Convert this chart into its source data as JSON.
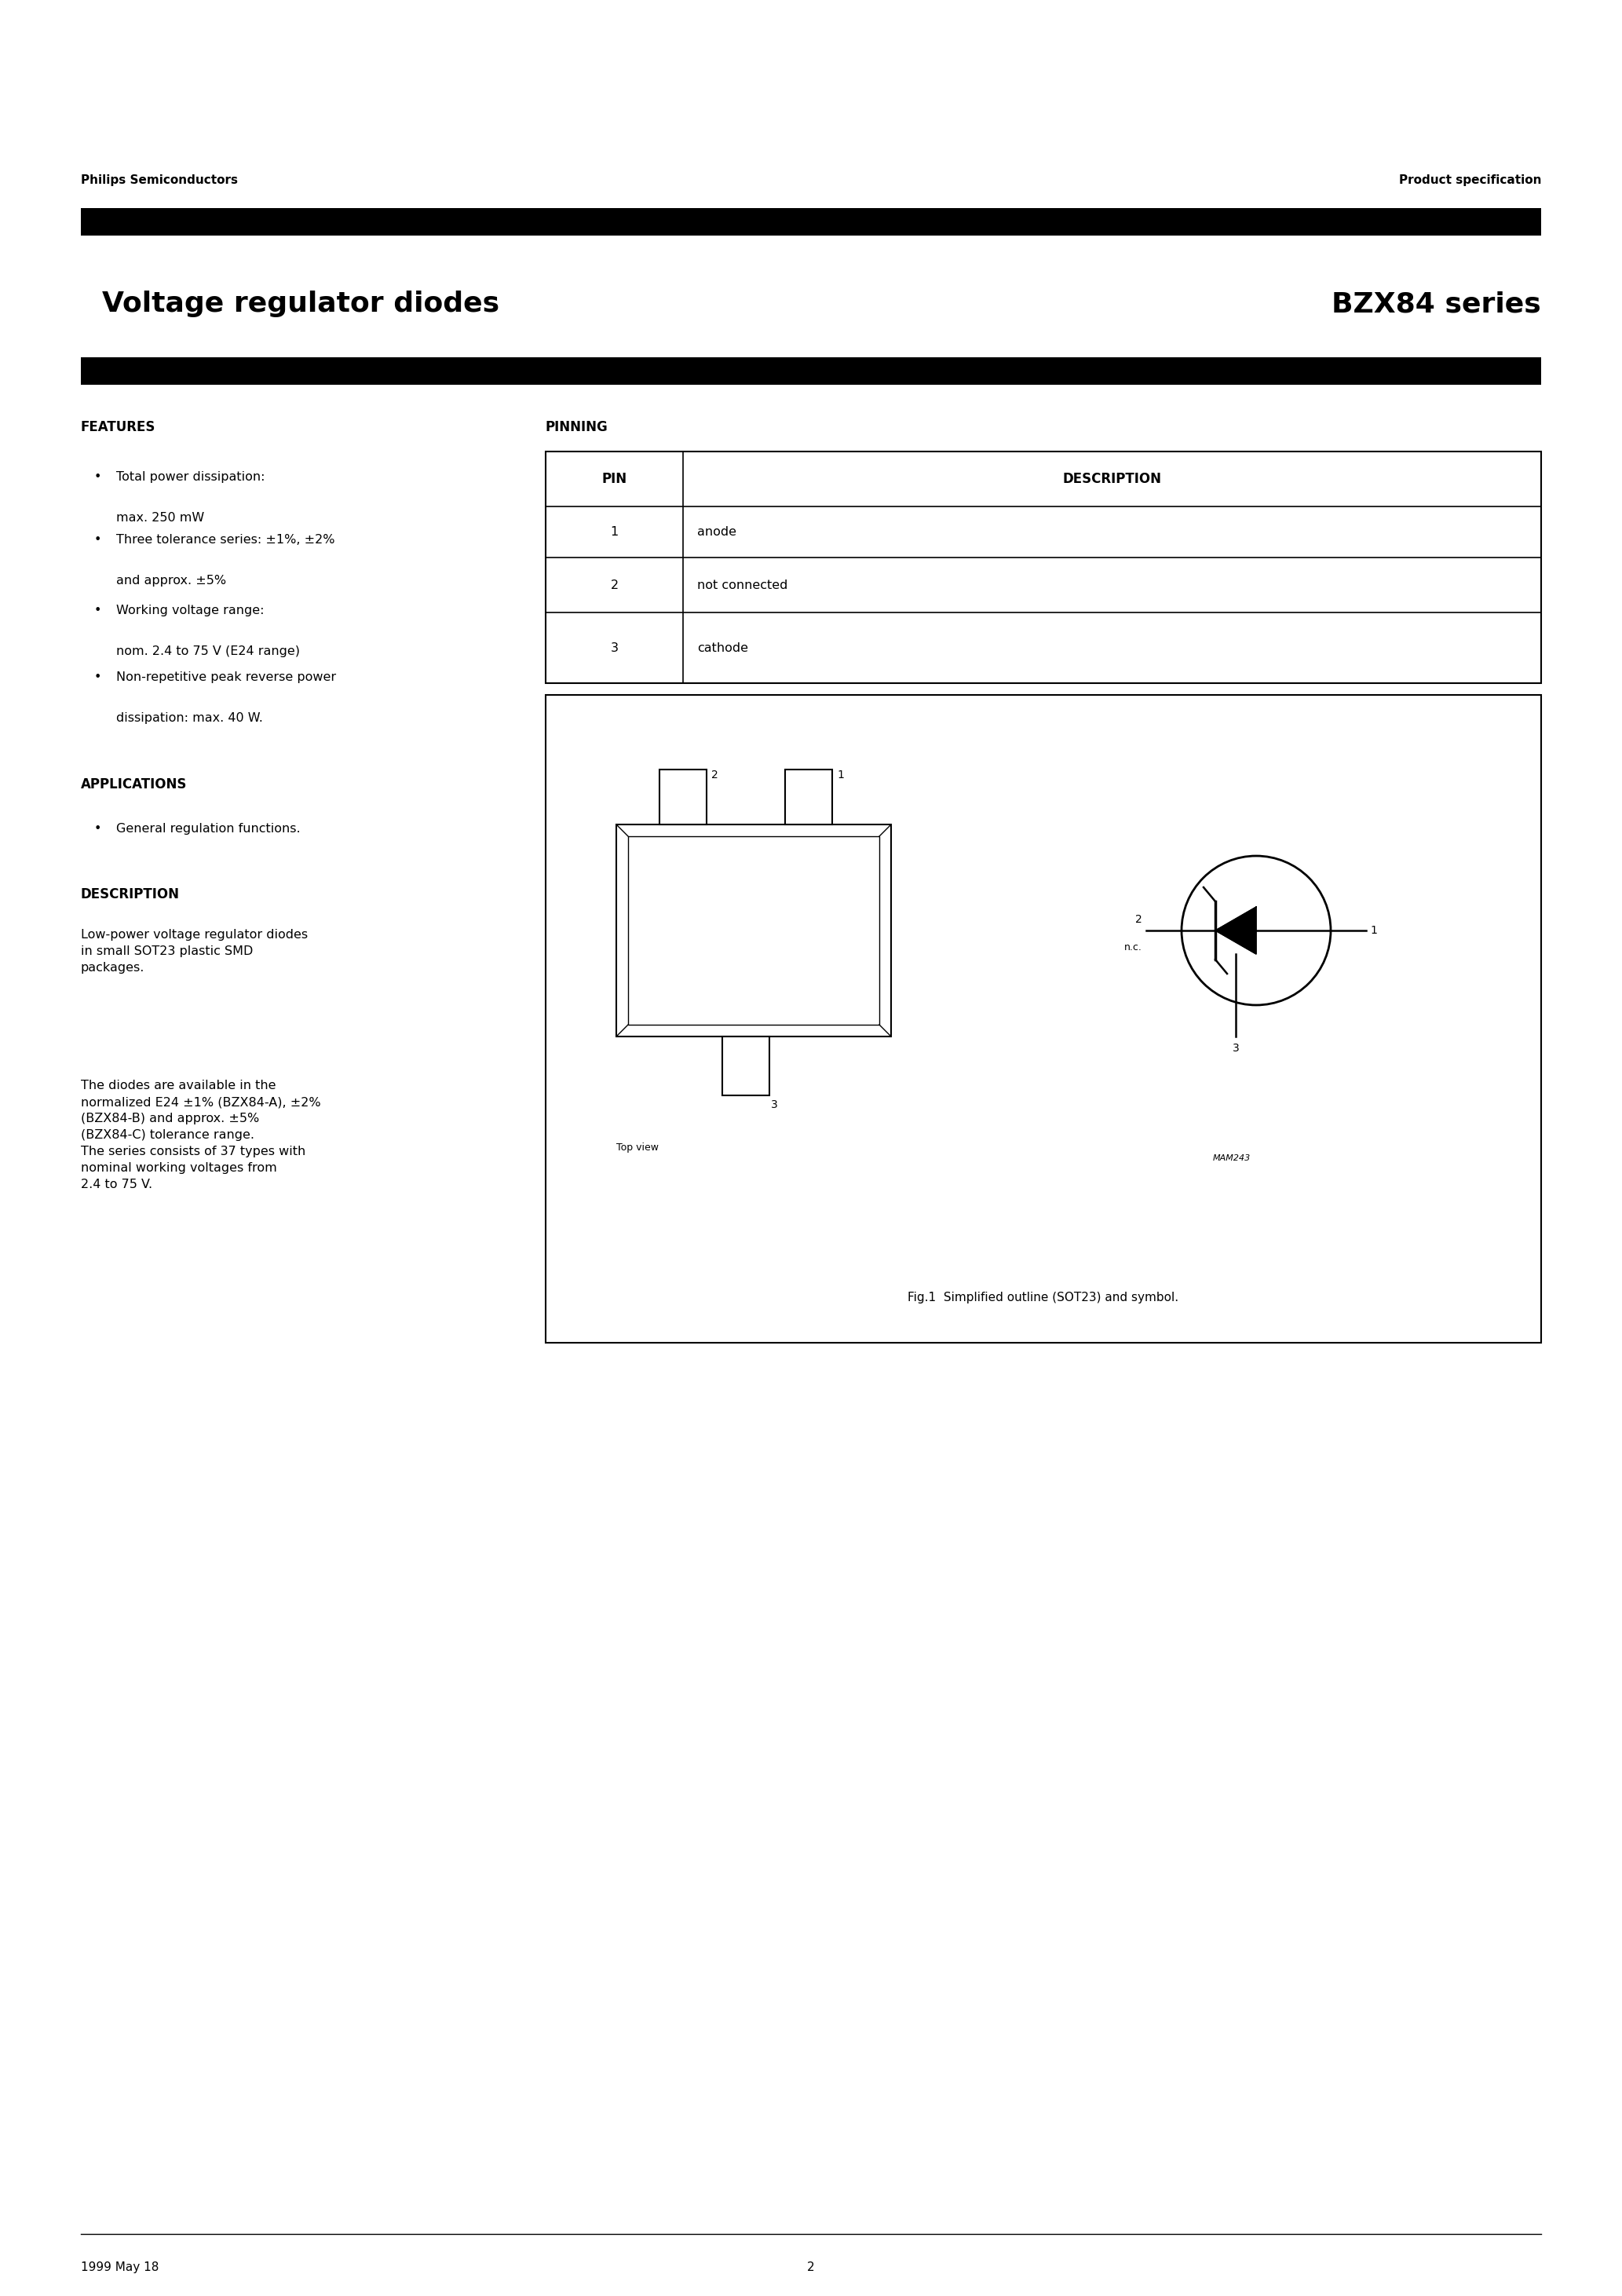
{
  "page_title_left": "Voltage regulator diodes",
  "page_title_right": "BZX84 series",
  "header_left": "Philips Semiconductors",
  "header_right": "Product specification",
  "features_title": "FEATURES",
  "features": [
    [
      "Total power dissipation:",
      "max. 250 mW"
    ],
    [
      "Three tolerance series: ±1%, ±2%",
      "and approx. ±5%"
    ],
    [
      "Working voltage range:",
      "nom. 2.4 to 75 V (E24 range)"
    ],
    [
      "Non-repetitive peak reverse power",
      "dissipation: max. 40 W."
    ]
  ],
  "applications_title": "APPLICATIONS",
  "applications": [
    "General regulation functions."
  ],
  "description_title": "DESCRIPTION",
  "description_text1": "Low-power voltage regulator diodes\nin small SOT23 plastic SMD\npackages.",
  "description_text2": "The diodes are available in the\nnormalized E24 ±1% (BZX84-A), ±2%\n(BZX84-B) and approx. ±5%\n(BZX84-C) tolerance range.\nThe series consists of 37 types with\nnominal working voltages from\n2.4 to 75 V.",
  "pinning_title": "PINNING",
  "pin_header": [
    "PIN",
    "DESCRIPTION"
  ],
  "pins": [
    [
      "1",
      "anode"
    ],
    [
      "2",
      "not connected"
    ],
    [
      "3",
      "cathode"
    ]
  ],
  "fig_caption": "Fig.1  Simplified outline (SOT23) and symbol.",
  "mam_label": "MAM243",
  "top_view_label": "Top view",
  "footer_left": "1999 May 18",
  "footer_center": "2",
  "bg_color": "#ffffff",
  "text_color": "#000000"
}
